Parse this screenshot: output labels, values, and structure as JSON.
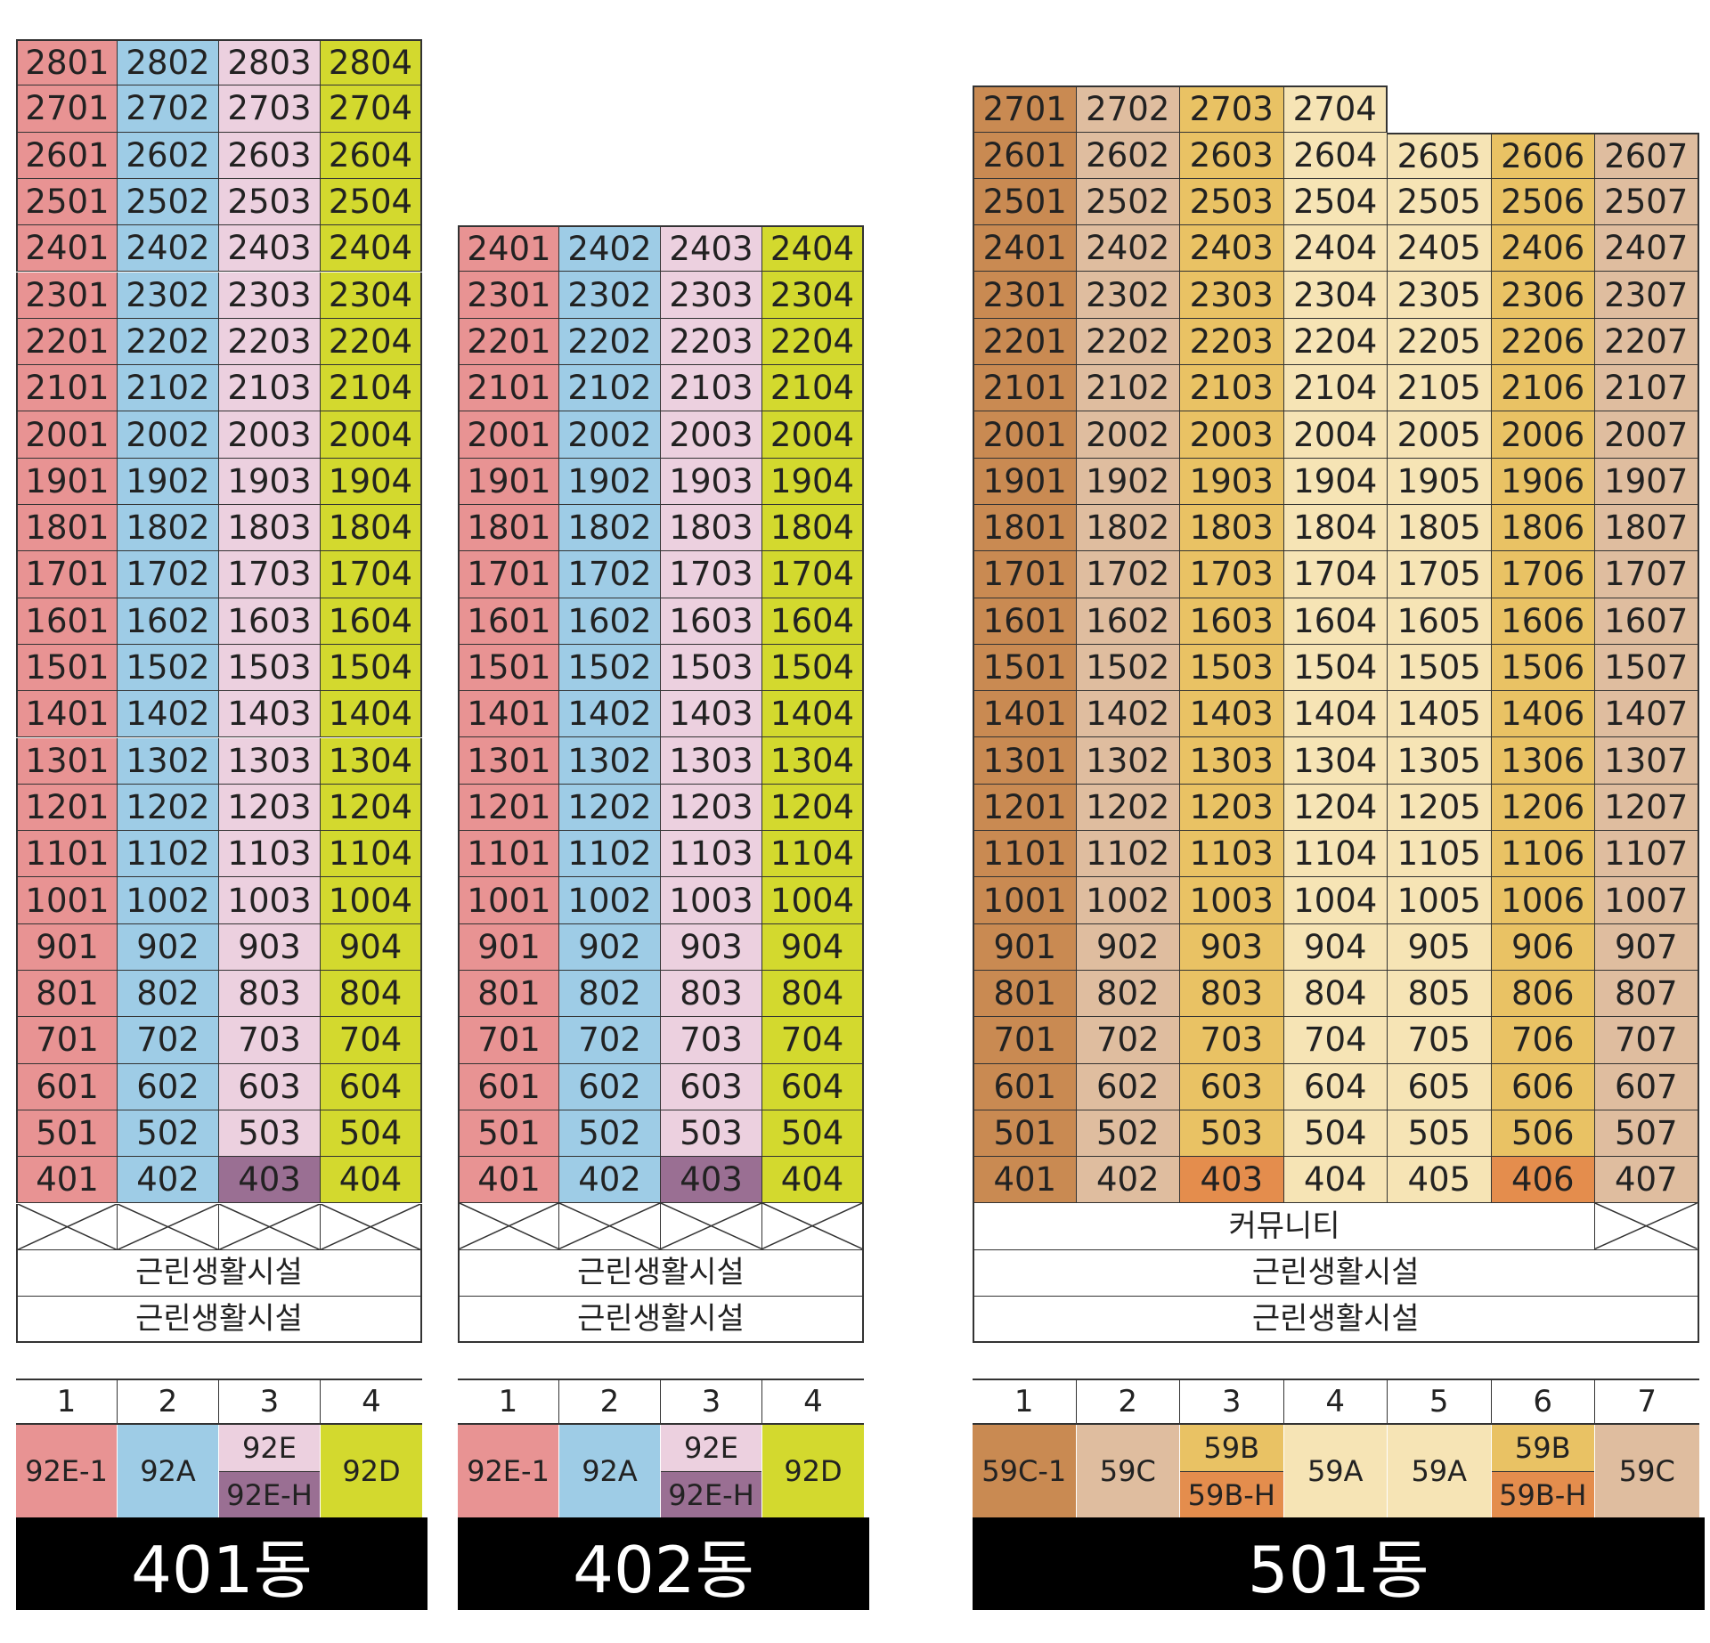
{
  "colors": {
    "92E-1": "#e89393",
    "92A": "#9ecce6",
    "92E": "#ecd0df",
    "92E-H": "#9a6f93",
    "92D": "#d3d92e",
    "59C-1": "#c98a52",
    "59C": "#dfbd9f",
    "59B": "#e9c264",
    "59B-H": "#e48d4d",
    "59A": "#f6e4b5"
  },
  "buildings": [
    {
      "name": "401동",
      "top_floor": 28,
      "units": 4,
      "unit_types": [
        "92E-1",
        "92A",
        "92E",
        "92D"
      ],
      "floor4_exceptions": {
        "3": "92E-H"
      },
      "podium": [
        {
          "kind": "crossed",
          "cells": 4
        },
        {
          "kind": "label",
          "text": "근린생활시설"
        },
        {
          "kind": "label",
          "text": "근린생활시설"
        }
      ],
      "legend": [
        {
          "line": "1",
          "types": [
            "92E-1"
          ]
        },
        {
          "line": "2",
          "types": [
            "92A"
          ]
        },
        {
          "line": "3",
          "types": [
            "92E",
            "92E-H"
          ]
        },
        {
          "line": "4",
          "types": [
            "92D"
          ]
        }
      ]
    },
    {
      "name": "402동",
      "top_floor": 24,
      "units": 4,
      "unit_types": [
        "92E-1",
        "92A",
        "92E",
        "92D"
      ],
      "floor4_exceptions": {
        "3": "92E-H"
      },
      "podium": [
        {
          "kind": "crossed",
          "cells": 4
        },
        {
          "kind": "label",
          "text": "근린생활시설"
        },
        {
          "kind": "label",
          "text": "근린생활시설"
        }
      ],
      "legend": [
        {
          "line": "1",
          "types": [
            "92E-1"
          ]
        },
        {
          "line": "2",
          "types": [
            "92A"
          ]
        },
        {
          "line": "3",
          "types": [
            "92E",
            "92E-H"
          ]
        },
        {
          "line": "4",
          "types": [
            "92D"
          ]
        }
      ]
    },
    {
      "name": "501동",
      "top_floor": 27,
      "units": 7,
      "top_floor_units": 4,
      "unit_types": [
        "59C-1",
        "59C",
        "59B",
        "59A",
        "59A",
        "59B",
        "59C"
      ],
      "floor4_exceptions": {
        "3": "59B-H",
        "6": "59B-H"
      },
      "podium": [
        {
          "kind": "community",
          "text": "커뮤니티",
          "span": 6,
          "crossed": 1
        },
        {
          "kind": "label",
          "text": "근린생활시설"
        },
        {
          "kind": "label",
          "text": "근린생활시설"
        }
      ],
      "legend": [
        {
          "line": "1",
          "types": [
            "59C-1"
          ]
        },
        {
          "line": "2",
          "types": [
            "59C"
          ]
        },
        {
          "line": "3",
          "types": [
            "59B",
            "59B-H"
          ]
        },
        {
          "line": "4",
          "types": [
            "59A"
          ]
        },
        {
          "line": "5",
          "types": [
            "59A"
          ]
        },
        {
          "line": "6",
          "types": [
            "59B",
            "59B-H"
          ]
        },
        {
          "line": "7",
          "types": [
            "59C"
          ]
        }
      ]
    }
  ]
}
